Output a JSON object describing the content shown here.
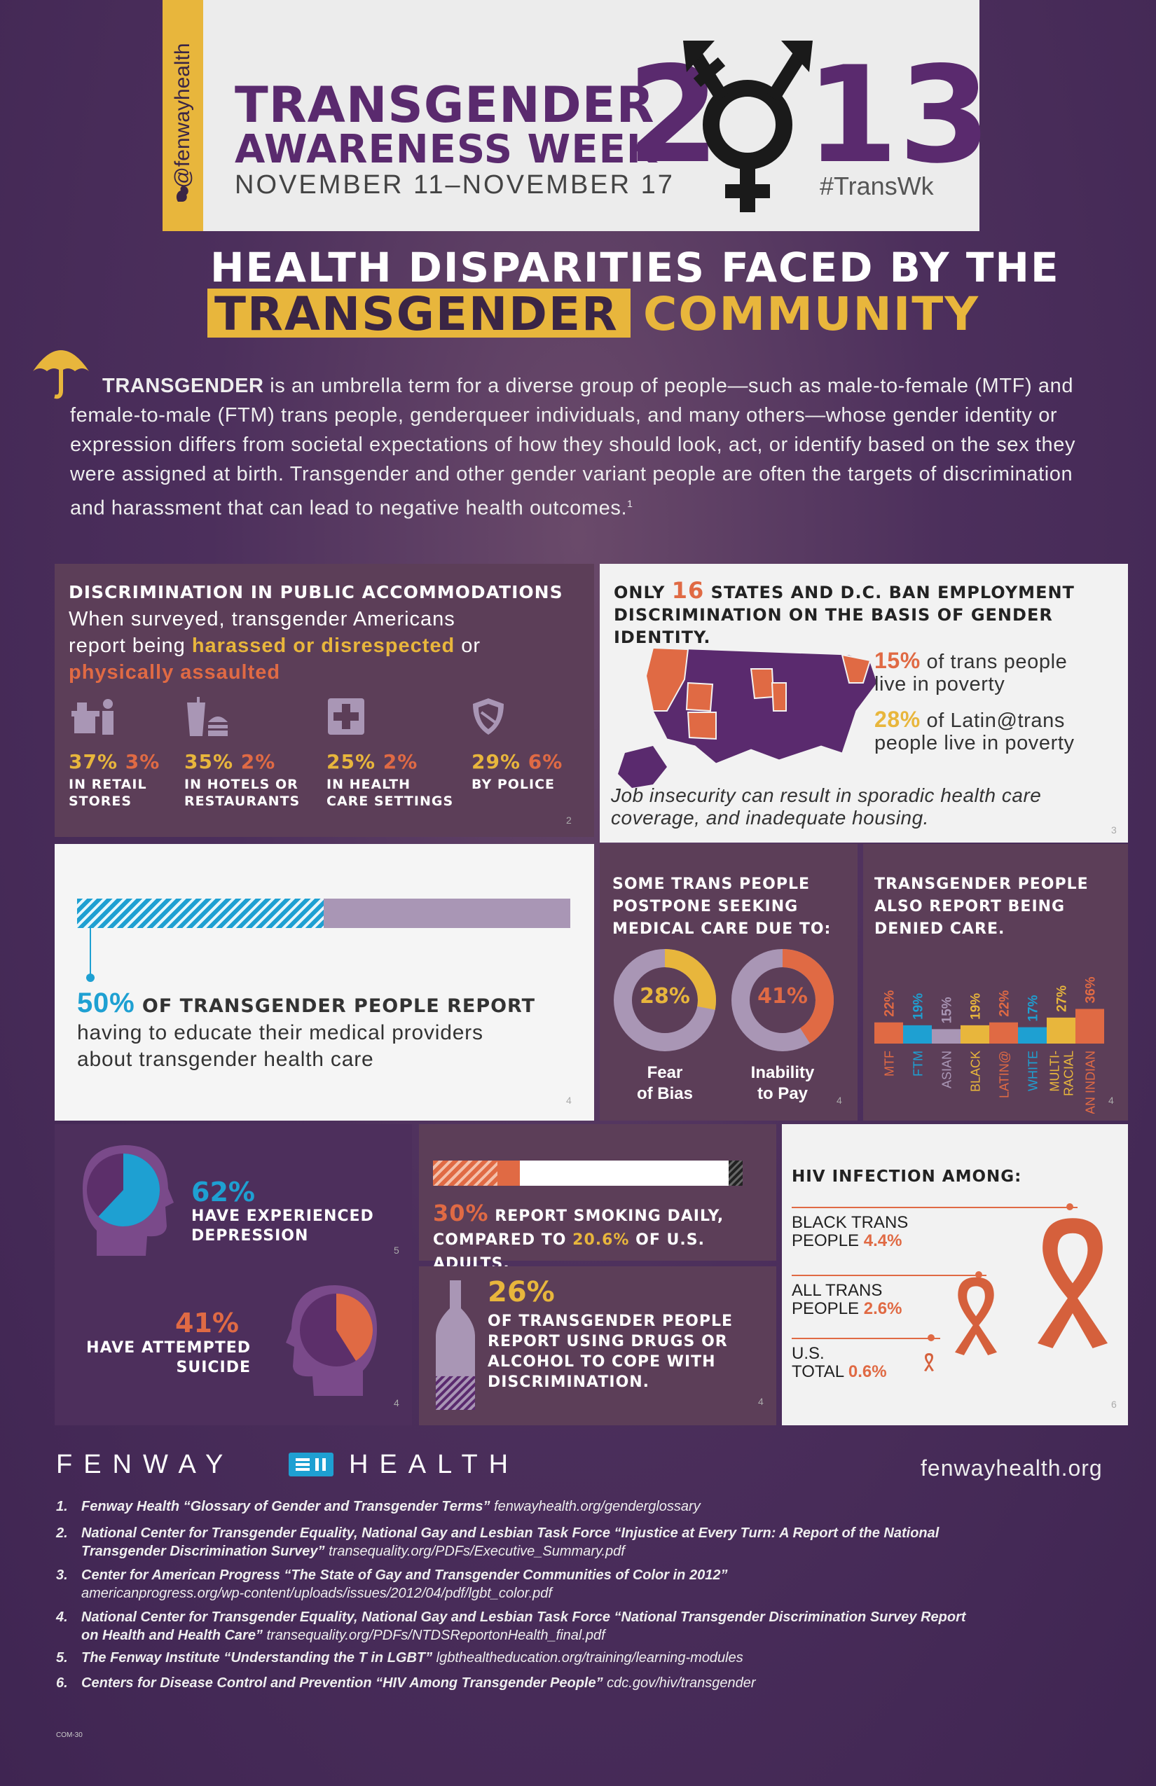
{
  "header": {
    "handle": "@fenwayhealth",
    "title_line1": "TRANSGENDER",
    "title_line2": "AWARENESS WEEK",
    "year_left": "2",
    "year_right": "13",
    "dates": "NOVEMBER 11–NOVEMBER 17",
    "hashtag": "#TransWk"
  },
  "headline": {
    "line1": "HEALTH DISPARITIES FACED BY THE",
    "line2a": "TRANSGENDER",
    "line2b": "COMMUNITY"
  },
  "intro": {
    "lead": "TRANSGENDER",
    "text": " is an umbrella term for a diverse group of people—such as male-to-female (MTF) and female-to-male (FTM) trans people, genderqueer individuals, and many others—whose gender identity or expression differs from societal expectations of how they should look, act, or identify based on the sex they were assigned at birth. Transgender and other gender variant people are often the targets of discrimination and harassment that can lead to negative health outcomes.",
    "sup": "1"
  },
  "discrimination": {
    "title": "DISCRIMINATION IN PUBLIC ACCOMMODATIONS",
    "sub1": "When surveyed, transgender Americans",
    "sub2a": "report being ",
    "sub2b": "harassed or disrespected",
    "sub2c": " or",
    "sub3": "physically assaulted",
    "ref": "2",
    "items": [
      {
        "a": "37%",
        "b": "3%",
        "l1": "IN RETAIL",
        "l2": "STORES",
        "icon": "retail-icon"
      },
      {
        "a": "35%",
        "b": "2%",
        "l1": "IN HOTELS OR",
        "l2": "RESTAURANTS",
        "icon": "food-icon"
      },
      {
        "a": "25%",
        "b": "2%",
        "l1": "IN HEALTH",
        "l2": "CARE SETTINGS",
        "icon": "health-cross-icon"
      },
      {
        "a": "29%",
        "b": "6%",
        "l1": "BY POLICE",
        "l2": "",
        "icon": "police-badge-icon"
      }
    ]
  },
  "states": {
    "l1a": "ONLY ",
    "l1b": "16",
    "l1c": " STATES AND D.C. BAN EMPLOYMENT",
    "l2": "DISCRIMINATION ON THE BASIS OF GENDER IDENTITY.",
    "pov1a": "15%",
    "pov1b": " of trans people",
    "pov1c": "live in poverty",
    "pov2a": "28%",
    "pov2b": " of Latin@trans",
    "pov2c": "people live in poverty",
    "note1": "Job insecurity can result in sporadic health care",
    "note2": "coverage, and inadequate housing.",
    "ref": "3"
  },
  "educate": {
    "pct": "50%",
    "l1": " OF TRANSGENDER PEOPLE REPORT",
    "l2": "having to educate their medical providers",
    "l3": "about transgender health care",
    "ref": "4",
    "fraction": 0.5
  },
  "postpone": {
    "t1": "SOME TRANS PEOPLE",
    "t2": "POSTPONE SEEKING",
    "t3": "MEDICAL CARE DUE TO:",
    "a_pct": "28%",
    "a_l1": "Fear",
    "a_l2": "of Bias",
    "b_pct": "41%",
    "b_l1": "Inability",
    "b_l2": "to Pay",
    "ref": "4",
    "a_val": 28,
    "b_val": 41
  },
  "denied": {
    "t1": "TRANSGENDER PEOPLE",
    "t2": "ALSO REPORT BEING",
    "t3": "DENIED CARE.",
    "ref": "4"
  },
  "chart_data": {
    "type": "bar",
    "title": "",
    "categories": [
      "MTF",
      "FTM",
      "ASIAN",
      "BLACK",
      "LATIN@",
      "WHITE",
      "MULTI-RACIAL",
      "AMERICAN INDIAN"
    ],
    "values": [
      22,
      19,
      15,
      19,
      22,
      17,
      27,
      36
    ],
    "labels": [
      "22%",
      "19%",
      "15%",
      "19%",
      "22%",
      "17%",
      "27%",
      "36%"
    ],
    "colors": [
      "#e06a44",
      "#1ea0d2",
      "#a996b5",
      "#e8b63c",
      "#e06a44",
      "#1ea0d2",
      "#e8b63c",
      "#e06a44"
    ]
  },
  "mental": {
    "dep_pct": "62%",
    "dep_l1": "HAVE EXPERIENCED",
    "dep_l2": "DEPRESSION",
    "dep_ref": "5",
    "sui_pct": "41%",
    "sui_l1": "HAVE ATTEMPTED",
    "sui_l2": "SUICIDE",
    "sui_ref": "4",
    "dep_val": 62,
    "sui_val": 41
  },
  "smoking": {
    "pct": "30%",
    "l1": " REPORT SMOKING DAILY,",
    "l2a": "COMPARED TO ",
    "l2b": "20.6%",
    "l2c": " OF U.S. ADULTS.",
    "trans_val": 30,
    "us_val": 20.6
  },
  "drugs": {
    "pct": "26%",
    "l1": "OF TRANSGENDER PEOPLE",
    "l2": "REPORT USING DRUGS OR",
    "l3": "ALCOHOL TO COPE WITH",
    "l4": "DISCRIMINATION.",
    "ref": "4",
    "val": 26
  },
  "hiv": {
    "title": "HIV INFECTION AMONG:",
    "items": [
      {
        "l1": "BLACK TRANS",
        "l2": "PEOPLE ",
        "pct": "4.4%",
        "val": 4.4
      },
      {
        "l1": "ALL TRANS",
        "l2": "PEOPLE ",
        "pct": "2.6%",
        "val": 2.6
      },
      {
        "l1": "U.S.",
        "l2": "TOTAL ",
        "pct": "0.6%",
        "val": 0.6
      }
    ],
    "ref": "6"
  },
  "footer": {
    "brand_left": "FENWAY",
    "brand_right": "HEALTH",
    "url": "fenwayhealth.org",
    "code": "COM-30",
    "refs": [
      {
        "n": "1.",
        "src": "Fenway Health “Glossary of Gender and Transgender Terms”",
        "url": " fenwayhealth.org/genderglossary",
        "l2": ""
      },
      {
        "n": "2.",
        "src": "National Center for Transgender Equality, National Gay and Lesbian Task Force “Injustice at Every Turn: A Report of the National",
        "url": "",
        "l2src": "Transgender Discrimination Survey”",
        "l2": " transequality.org/PDFs/Executive_Summary.pdf"
      },
      {
        "n": "3.",
        "src": "Center for American Progress  “The State of Gay and Transgender Communities of Color in 2012”",
        "url": "",
        "l2src": "",
        "l2": "americanprogress.org/wp-content/uploads/issues/2012/04/pdf/lgbt_color.pdf"
      },
      {
        "n": "4.",
        "src": "National Center for Transgender Equality, National Gay and Lesbian Task Force  “National Transgender Discrimination Survey Report",
        "url": "",
        "l2src": "on Health and Health Care”",
        "l2": " transequality.org/PDFs/NTDSReportonHealth_final.pdf"
      },
      {
        "n": "5.",
        "src": "The Fenway Institute  “Understanding the T in LGBT”",
        "url": " lgbthealtheducation.org/training/learning-modules",
        "l2": ""
      },
      {
        "n": "6.",
        "src": "Centers for Disease Control and Prevention  “HIV Among Transgender People”",
        "url": " cdc.gov/hiv/transgender",
        "l2": ""
      }
    ]
  }
}
